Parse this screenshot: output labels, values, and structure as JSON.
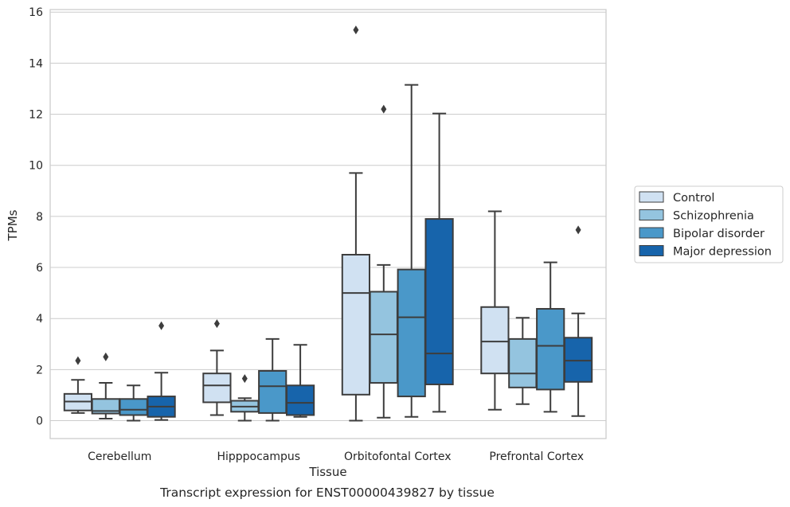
{
  "caption": "Transcript expression for ENST00000439827 by tissue",
  "chart_data": {
    "type": "box",
    "xlabel": "Tissue",
    "ylabel": "TPMs",
    "ylim": [
      -0.7,
      16.1
    ],
    "yticks": [
      0,
      2,
      4,
      6,
      8,
      10,
      12,
      14,
      16
    ],
    "grid": "horizontal",
    "legend_position": "right",
    "categories": [
      "Cerebellum",
      "Hipppocampus",
      "Orbitofontal Cortex",
      "Prefrontal Cortex"
    ],
    "series": [
      {
        "name": "Control",
        "color": "#d0e1f2",
        "boxes": [
          {
            "whislo": 0.3,
            "q1": 0.4,
            "med": 0.75,
            "q3": 1.05,
            "whishi": 1.6,
            "fliers": [
              2.35
            ]
          },
          {
            "whislo": 0.22,
            "q1": 0.72,
            "med": 1.38,
            "q3": 1.85,
            "whishi": 2.75,
            "fliers": [
              3.8
            ]
          },
          {
            "whislo": 0.0,
            "q1": 1.02,
            "med": 5.0,
            "q3": 6.5,
            "whishi": 9.7,
            "fliers": [
              15.3
            ]
          },
          {
            "whislo": 0.43,
            "q1": 1.85,
            "med": 3.1,
            "q3": 4.45,
            "whishi": 8.2,
            "fliers": []
          }
        ]
      },
      {
        "name": "Schizophrenia",
        "color": "#94c4df",
        "boxes": [
          {
            "whislo": 0.08,
            "q1": 0.28,
            "med": 0.38,
            "q3": 0.85,
            "whishi": 1.48,
            "fliers": [
              2.5
            ]
          },
          {
            "whislo": 0.0,
            "q1": 0.35,
            "med": 0.55,
            "q3": 0.78,
            "whishi": 0.88,
            "fliers": [
              1.65
            ]
          },
          {
            "whislo": 0.12,
            "q1": 1.48,
            "med": 3.38,
            "q3": 5.05,
            "whishi": 6.1,
            "fliers": [
              12.2
            ]
          },
          {
            "whislo": 0.65,
            "q1": 1.3,
            "med": 1.85,
            "q3": 3.2,
            "whishi": 4.03,
            "fliers": []
          }
        ]
      },
      {
        "name": "Bipolar disorder",
        "color": "#4a98c9",
        "boxes": [
          {
            "whislo": 0.0,
            "q1": 0.22,
            "med": 0.43,
            "q3": 0.85,
            "whishi": 1.38,
            "fliers": []
          },
          {
            "whislo": 0.0,
            "q1": 0.3,
            "med": 1.35,
            "q3": 1.95,
            "whishi": 3.2,
            "fliers": []
          },
          {
            "whislo": 0.15,
            "q1": 0.95,
            "med": 4.05,
            "q3": 5.92,
            "whishi": 13.15,
            "fliers": []
          },
          {
            "whislo": 0.35,
            "q1": 1.22,
            "med": 2.93,
            "q3": 4.38,
            "whishi": 6.2,
            "fliers": []
          }
        ]
      },
      {
        "name": "Major depression",
        "color": "#1764ab",
        "boxes": [
          {
            "whislo": 0.03,
            "q1": 0.15,
            "med": 0.55,
            "q3": 0.95,
            "whishi": 1.88,
            "fliers": [
              3.72
            ]
          },
          {
            "whislo": 0.15,
            "q1": 0.22,
            "med": 0.7,
            "q3": 1.38,
            "whishi": 2.97,
            "fliers": []
          },
          {
            "whislo": 0.35,
            "q1": 1.42,
            "med": 2.63,
            "q3": 7.9,
            "whishi": 12.03,
            "fliers": []
          },
          {
            "whislo": 0.18,
            "q1": 1.52,
            "med": 2.35,
            "q3": 3.25,
            "whishi": 4.2,
            "fliers": [
              7.47
            ]
          }
        ]
      }
    ]
  }
}
